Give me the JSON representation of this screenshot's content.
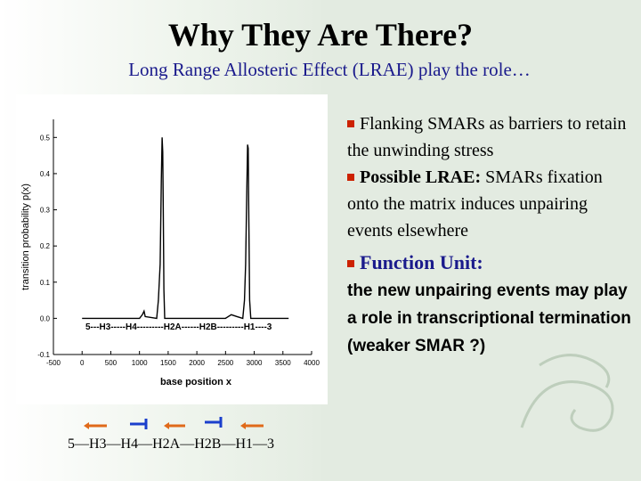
{
  "slide": {
    "title": "Why They Are There?",
    "subtitle": "Long Range Allosteric Effect (LRAE) play the role…"
  },
  "bullets": {
    "b1": "Flanking SMARs as barriers to retain the unwinding stress",
    "b2_bold": "Possible LRAE:",
    "b2_rest": " SMARs fixation onto the matrix induces unpairing events elsewhere",
    "b3_label": "Function Unit:",
    "b3_text": "the new unpairing events may play a role in transcriptional termination (weaker SMAR ?)"
  },
  "gene_order_label": "5—H3—H4—H2A—H2B—H1—3",
  "colors": {
    "bullet_square": "#cc2200",
    "subtitle": "#1a1a8c",
    "arrow_orange": "#e06a1a",
    "arrow_blue": "#1a3fcc"
  },
  "arrows": [
    {
      "color": "orange",
      "direction": "left"
    },
    {
      "color": "blue",
      "direction": "right"
    },
    {
      "color": "orange",
      "direction": "left"
    },
    {
      "color": "blue",
      "direction": "right"
    },
    {
      "color": "orange",
      "direction": "left"
    }
  ],
  "chart_data": {
    "type": "line",
    "xlabel": "base position x",
    "ylabel": "transition probability p(x)",
    "xlim": [
      -500,
      4000
    ],
    "ylim": [
      -0.1,
      0.55
    ],
    "x_ticks": [
      "-500",
      "0",
      "500",
      "1000",
      "1500",
      "2000",
      "2500",
      "3000",
      "3500",
      "4000"
    ],
    "y_ticks": [
      "-0.1",
      "0.0",
      "0.1",
      "0.2",
      "0.3",
      "0.4",
      "0.5"
    ],
    "annotation": "5---H3-----H4---------H2A------H2B---------H1----3",
    "series": [
      {
        "values_xy": [
          [
            0,
            0.0
          ],
          [
            1000,
            0.0
          ],
          [
            1050,
            0.01
          ],
          [
            1080,
            0.02
          ],
          [
            1100,
            0.005
          ],
          [
            1300,
            0.0
          ],
          [
            1330,
            0.05
          ],
          [
            1360,
            0.15
          ],
          [
            1380,
            0.38
          ],
          [
            1395,
            0.5
          ],
          [
            1405,
            0.46
          ],
          [
            1415,
            0.3
          ],
          [
            1425,
            0.08
          ],
          [
            1440,
            0.0
          ],
          [
            2500,
            0.0
          ],
          [
            2600,
            0.01
          ],
          [
            2700,
            0.005
          ],
          [
            2800,
            0.0
          ],
          [
            2830,
            0.05
          ],
          [
            2850,
            0.15
          ],
          [
            2870,
            0.35
          ],
          [
            2885,
            0.48
          ],
          [
            2895,
            0.47
          ],
          [
            2905,
            0.3
          ],
          [
            2920,
            0.05
          ],
          [
            2940,
            0.0
          ],
          [
            3000,
            0.0
          ],
          [
            3600,
            0.0
          ]
        ]
      }
    ]
  }
}
